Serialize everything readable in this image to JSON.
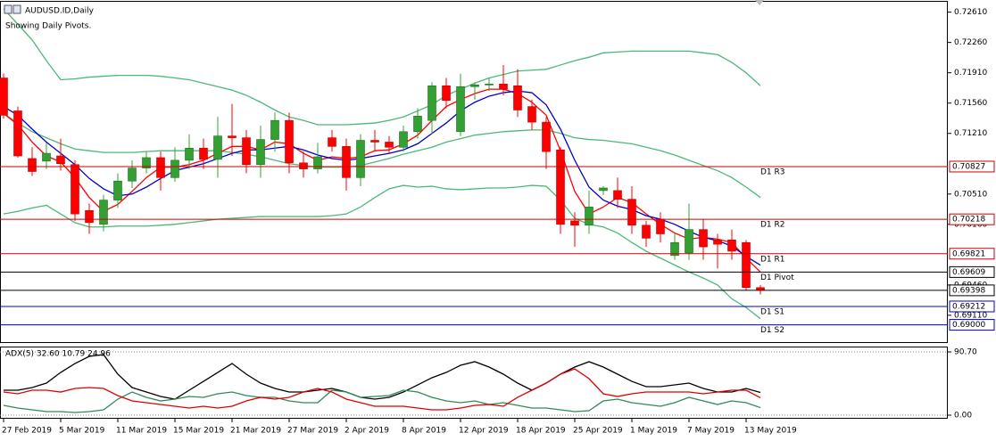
{
  "chart_data": [
    {
      "type": "candlestick",
      "title": "AUDUSD.ID,Daily",
      "subtitle": "Showing Daily Pivots.",
      "categories": [
        "27 Feb 2019",
        null,
        null,
        null,
        "5 Mar 2019",
        null,
        null,
        null,
        "11 Mar 2019",
        null,
        null,
        null,
        "15 Mar 2019",
        null,
        null,
        null,
        "21 Mar 2019",
        null,
        null,
        null,
        "27 Mar 2019",
        null,
        null,
        null,
        "2 Apr 2019",
        null,
        null,
        null,
        "8 Apr 2019",
        null,
        null,
        null,
        "12 Apr 2019",
        null,
        null,
        null,
        "18 Apr 2019",
        null,
        null,
        null,
        "25 Apr 2019",
        null,
        null,
        null,
        "1 May 2019",
        null,
        null,
        null,
        "7 May 2019",
        null,
        null,
        null,
        "13 May 2019",
        null
      ],
      "open": [
        0.7185,
        0.7147,
        0.7092,
        0.7089,
        0.7095,
        0.7085,
        0.7032,
        0.7016,
        0.7044,
        0.7066,
        0.7081,
        0.7093,
        0.707,
        0.709,
        0.7104,
        0.7091,
        0.7118,
        0.7116,
        0.7085,
        0.7114,
        0.7136,
        0.7087,
        0.708,
        0.7116,
        0.7106,
        0.707,
        0.7113,
        0.7111,
        0.7105,
        0.7123,
        0.7136,
        0.7176,
        0.7123,
        0.7175,
        0.7177,
        0.7178,
        0.7176,
        0.7152,
        0.7134,
        0.7102,
        0.702,
        0.7015,
        0.7055,
        0.7055,
        0.7045,
        0.7015,
        0.7022,
        0.698,
        0.6983,
        0.701,
        0.6998,
        0.6998,
        0.6995,
        0.6943
      ],
      "high": [
        0.719,
        0.7152,
        0.7105,
        0.711,
        0.7115,
        0.709,
        0.704,
        0.705,
        0.7075,
        0.709,
        0.71,
        0.71,
        0.7105,
        0.712,
        0.7115,
        0.714,
        0.7155,
        0.7125,
        0.713,
        0.7145,
        0.7145,
        0.71,
        0.711,
        0.7125,
        0.7115,
        0.712,
        0.7125,
        0.7118,
        0.713,
        0.715,
        0.718,
        0.7185,
        0.719,
        0.718,
        0.7185,
        0.72,
        0.7195,
        0.716,
        0.714,
        0.7105,
        0.703,
        0.7055,
        0.706,
        0.707,
        0.706,
        0.702,
        0.703,
        0.7005,
        0.704,
        0.7022,
        0.7005,
        0.701,
        0.6998,
        0.6946
      ],
      "low": [
        0.7138,
        0.7093,
        0.7072,
        0.708,
        0.7078,
        0.702,
        0.7005,
        0.7008,
        0.7035,
        0.7058,
        0.7075,
        0.7055,
        0.7065,
        0.708,
        0.708,
        0.707,
        0.7095,
        0.7075,
        0.707,
        0.71,
        0.7075,
        0.707,
        0.7075,
        0.71,
        0.7055,
        0.706,
        0.71,
        0.7098,
        0.71,
        0.7115,
        0.712,
        0.715,
        0.7118,
        0.716,
        0.717,
        0.7165,
        0.714,
        0.7125,
        0.708,
        0.7005,
        0.699,
        0.7005,
        0.705,
        0.7035,
        0.7005,
        0.699,
        0.6995,
        0.6975,
        0.6975,
        0.6975,
        0.6965,
        0.6975,
        0.694,
        0.6935
      ],
      "close": [
        0.7142,
        0.7095,
        0.7077,
        0.7098,
        0.7086,
        0.7028,
        0.7018,
        0.7044,
        0.7066,
        0.7081,
        0.7093,
        0.707,
        0.709,
        0.7104,
        0.7091,
        0.7118,
        0.7116,
        0.7085,
        0.7114,
        0.7136,
        0.7087,
        0.708,
        0.7094,
        0.7106,
        0.707,
        0.7113,
        0.7111,
        0.7105,
        0.7123,
        0.7141,
        0.7176,
        0.7159,
        0.7175,
        0.7177,
        0.7178,
        0.7172,
        0.7148,
        0.7134,
        0.71,
        0.7016,
        0.7015,
        0.7036,
        0.7058,
        0.7045,
        0.7015,
        0.7,
        0.7005,
        0.6995,
        0.701,
        0.699,
        0.6993,
        0.6985,
        0.6943,
        0.694
      ],
      "up_color": "#34a034",
      "down_color": "#ff0000",
      "series": [
        {
          "color": "#4cb878",
          "values": [
            0.7265,
            0.7247,
            0.7229,
            0.7205,
            0.7183,
            0.7184,
            0.7186,
            0.7187,
            0.7188,
            0.7188,
            0.7188,
            0.7187,
            0.7185,
            0.7183,
            0.7179,
            0.7175,
            0.7171,
            0.7165,
            0.7157,
            0.7148,
            0.714,
            0.7136,
            0.7131,
            0.7131,
            0.7131,
            0.7132,
            0.7133,
            0.7136,
            0.714,
            0.7147,
            0.7154,
            0.7165,
            0.7172,
            0.7179,
            0.7185,
            0.7189,
            0.7193,
            0.7194,
            0.7195,
            0.72,
            0.7205,
            0.7209,
            0.7214,
            0.7215,
            0.7216,
            0.7216,
            0.7216,
            0.7216,
            0.7216,
            0.7214,
            0.7212,
            0.7203,
            0.7191,
            0.7176
          ]
        },
        {
          "color": "#4cb878",
          "values": [
            0.7144,
            0.7133,
            0.7123,
            0.7116,
            0.7109,
            0.7103,
            0.7101,
            0.7099,
            0.7099,
            0.7099,
            0.71,
            0.7101,
            0.7101,
            0.7101,
            0.7101,
            0.7101,
            0.7099,
            0.7097,
            0.7094,
            0.709,
            0.7086,
            0.7084,
            0.7082,
            0.7082,
            0.7082,
            0.7084,
            0.7088,
            0.7092,
            0.7097,
            0.7101,
            0.7105,
            0.7111,
            0.7115,
            0.7119,
            0.7121,
            0.7123,
            0.7124,
            0.7125,
            0.7125,
            0.7121,
            0.7116,
            0.7114,
            0.7113,
            0.7111,
            0.7109,
            0.7105,
            0.7101,
            0.7096,
            0.709,
            0.7084,
            0.7078,
            0.707,
            0.7059,
            0.7047
          ]
        },
        {
          "color": "#4cb878",
          "values": [
            0.7028,
            0.7031,
            0.7035,
            0.7038,
            0.7028,
            0.7018,
            0.7013,
            0.7013,
            0.7014,
            0.7014,
            0.7014,
            0.7015,
            0.7016,
            0.7018,
            0.702,
            0.7022,
            0.7023,
            0.7024,
            0.7025,
            0.7025,
            0.7025,
            0.7025,
            0.7025,
            0.7026,
            0.7028,
            0.7036,
            0.7047,
            0.7057,
            0.7061,
            0.7059,
            0.706,
            0.7057,
            0.7056,
            0.7057,
            0.7058,
            0.7058,
            0.7059,
            0.7061,
            0.706,
            0.7044,
            0.7023,
            0.7016,
            0.7013,
            0.7006,
            0.6995,
            0.6985,
            0.6977,
            0.6969,
            0.6961,
            0.6954,
            0.6946,
            0.693,
            0.692,
            0.6907
          ]
        },
        {
          "color": "#ff0000",
          "values": [
            0.7144,
            0.7131,
            0.7111,
            0.7095,
            0.7088,
            0.707,
            0.7047,
            0.7031,
            0.7039,
            0.7054,
            0.707,
            0.7082,
            0.7082,
            0.7085,
            0.709,
            0.7098,
            0.7106,
            0.7106,
            0.7102,
            0.7111,
            0.7109,
            0.7098,
            0.709,
            0.7094,
            0.7092,
            0.7094,
            0.7101,
            0.7102,
            0.7109,
            0.7119,
            0.7136,
            0.7152,
            0.716,
            0.7167,
            0.7172,
            0.7172,
            0.7167,
            0.7157,
            0.7142,
            0.7101,
            0.7054,
            0.7028,
            0.7036,
            0.7047,
            0.7041,
            0.7028,
            0.7016,
            0.7006,
            0.6999,
            0.7001,
            0.6999,
            0.6995,
            0.6977,
            0.6961
          ]
        },
        {
          "color": "#0000cd",
          "values": [
            0.7152,
            0.7142,
            0.7126,
            0.7111,
            0.7098,
            0.7085,
            0.7069,
            0.7057,
            0.7049,
            0.7051,
            0.7059,
            0.7069,
            0.7078,
            0.7082,
            0.7086,
            0.7092,
            0.7098,
            0.7102,
            0.7102,
            0.7104,
            0.7106,
            0.7102,
            0.7096,
            0.7092,
            0.709,
            0.7092,
            0.7095,
            0.7098,
            0.7102,
            0.7109,
            0.7121,
            0.7133,
            0.7147,
            0.7157,
            0.7164,
            0.7168,
            0.717,
            0.7168,
            0.7154,
            0.7126,
            0.709,
            0.7059,
            0.7044,
            0.7037,
            0.7033,
            0.7026,
            0.7022,
            0.7016,
            0.7008,
            0.7001,
            0.6997,
            0.6991,
            0.6979,
            0.6969
          ]
        }
      ],
      "pivots": [
        {
          "name": "D1 R3",
          "value": 0.70827,
          "value_label": "0.70827",
          "color": "#cc0000"
        },
        {
          "name": "D1 R2",
          "value": 0.70218,
          "value_label": "0.70218",
          "color": "#cc0000"
        },
        {
          "name": "D1 R1",
          "value": 0.69821,
          "value_label": "0.69821",
          "color": "#cc0000"
        },
        {
          "name": "D1 Pivot",
          "value": 0.69609,
          "value_label": "0.69609",
          "color": "#000000"
        },
        {
          "name": "D1 S1",
          "value": 0.69212,
          "value_label": "0.69212",
          "color": "#0000cc"
        },
        {
          "name": "D1 S2",
          "value": 0.69,
          "value_label": "0.69000",
          "color": "#0000cc"
        }
      ],
      "price_line": {
        "value": 0.69398,
        "label": "0.69398"
      },
      "ylim": [
        0.6879,
        0.7274
      ],
      "yticks": [
        {
          "value": 0.7261,
          "label": "0.72610"
        },
        {
          "value": 0.7226,
          "label": "0.72260"
        },
        {
          "value": 0.7191,
          "label": "0.71910"
        },
        {
          "value": 0.7156,
          "label": "0.71560"
        },
        {
          "value": 0.7121,
          "label": "0.71210"
        },
        {
          "value": 0.7051,
          "label": "0.70510"
        },
        {
          "value": 0.7016,
          "label": "0.70160"
        },
        {
          "value": 0.6946,
          "label": "0.69460"
        },
        {
          "value": 0.6911,
          "label": "0.69110"
        }
      ]
    },
    {
      "type": "line",
      "title": "ADX(5) 32.60 10.79 24.96",
      "series": [
        {
          "color": "#000000",
          "values": [
            35.8,
            35.8,
            39.6,
            46.0,
            61.3,
            74.1,
            84.3,
            86.9,
            58.8,
            39.6,
            33.2,
            26.8,
            23.0,
            35.8,
            48.5,
            61.3,
            74.1,
            58.8,
            46.0,
            38.3,
            33.2,
            33.2,
            35.8,
            38.3,
            33.2,
            25.6,
            23.0,
            25.6,
            33.2,
            43.4,
            53.7,
            61.3,
            71.5,
            76.7,
            69.0,
            58.8,
            46.0,
            35.8,
            46.0,
            58.8,
            69.0,
            76.7,
            69.0,
            58.8,
            48.5,
            40.9,
            40.9,
            43.4,
            46.0,
            38.3,
            33.2,
            33.2,
            38.3,
            32.6
          ]
        },
        {
          "color": "#2e8b57",
          "values": [
            14.1,
            10.2,
            7.7,
            5.1,
            5.1,
            3.8,
            5.1,
            7.7,
            23.0,
            33.2,
            25.6,
            20.4,
            23.0,
            26.8,
            25.6,
            30.7,
            33.2,
            28.1,
            25.6,
            25.6,
            20.4,
            17.9,
            17.9,
            35.8,
            33.2,
            25.6,
            26.8,
            28.1,
            35.8,
            33.2,
            25.6,
            20.4,
            17.9,
            20.4,
            15.3,
            17.9,
            14.1,
            10.2,
            10.2,
            7.7,
            5.1,
            6.4,
            20.4,
            23.0,
            17.9,
            15.3,
            12.8,
            17.9,
            25.6,
            20.4,
            15.3,
            20.4,
            17.9,
            10.79
          ]
        },
        {
          "color": "#e00000",
          "values": [
            33.2,
            30.7,
            35.8,
            35.8,
            33.2,
            38.3,
            39.6,
            38.3,
            28.1,
            20.4,
            17.9,
            15.3,
            12.8,
            10.2,
            12.8,
            10.2,
            12.8,
            20.4,
            25.6,
            23.0,
            25.6,
            33.2,
            38.3,
            33.2,
            23.0,
            17.9,
            12.8,
            12.8,
            12.8,
            10.2,
            7.7,
            7.7,
            10.2,
            14.1,
            15.3,
            12.8,
            25.6,
            35.8,
            46.0,
            58.8,
            66.4,
            52.4,
            30.7,
            26.8,
            30.7,
            33.2,
            33.2,
            33.2,
            33.2,
            30.7,
            33.2,
            35.8,
            35.8,
            24.96
          ]
        }
      ],
      "ylim": [
        -5.1,
        98.4
      ],
      "yticks": [
        {
          "value": 0,
          "label": "0.00"
        },
        {
          "value": 90.7,
          "label": "90.70"
        }
      ],
      "grid": "dotted"
    }
  ]
}
